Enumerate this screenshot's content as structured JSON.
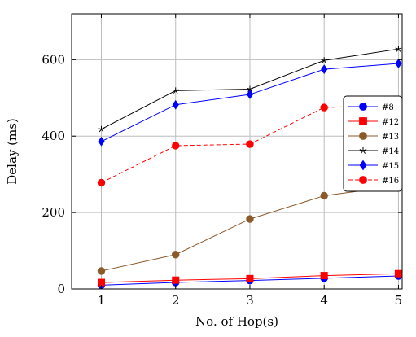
{
  "chart_data": {
    "type": "line",
    "xlabel": "No. of Hop(s)",
    "ylabel": "Delay (ms)",
    "x": [
      1,
      2,
      3,
      4,
      5
    ],
    "xlim": [
      0.6,
      5.05
    ],
    "ylim": [
      0,
      720
    ],
    "xticks": [
      1,
      2,
      3,
      4,
      5
    ],
    "yticks": [
      0,
      200,
      400,
      600
    ],
    "grid": true,
    "legend_position": "right",
    "series": [
      {
        "name": "#8",
        "color": "#0000ff",
        "marker": "circle",
        "dashed": false,
        "values": [
          10,
          17,
          22,
          28,
          34
        ]
      },
      {
        "name": "#12",
        "color": "#ff0000",
        "marker": "square",
        "dashed": false,
        "values": [
          17,
          23,
          27,
          35,
          40
        ]
      },
      {
        "name": "#13",
        "color": "#8b5a2b",
        "marker": "circle",
        "dashed": false,
        "values": [
          47,
          90,
          183,
          244,
          270
        ]
      },
      {
        "name": "#14",
        "color": "#000000",
        "marker": "star",
        "dashed": false,
        "values": [
          418,
          519,
          523,
          598,
          628
        ]
      },
      {
        "name": "#15",
        "color": "#0000ff",
        "marker": "diamond",
        "dashed": false,
        "values": [
          386,
          482,
          509,
          575,
          590
        ]
      },
      {
        "name": "#16",
        "color": "#ff0000",
        "marker": "circle",
        "dashed": true,
        "values": [
          278,
          375,
          379,
          475,
          481
        ]
      }
    ]
  }
}
